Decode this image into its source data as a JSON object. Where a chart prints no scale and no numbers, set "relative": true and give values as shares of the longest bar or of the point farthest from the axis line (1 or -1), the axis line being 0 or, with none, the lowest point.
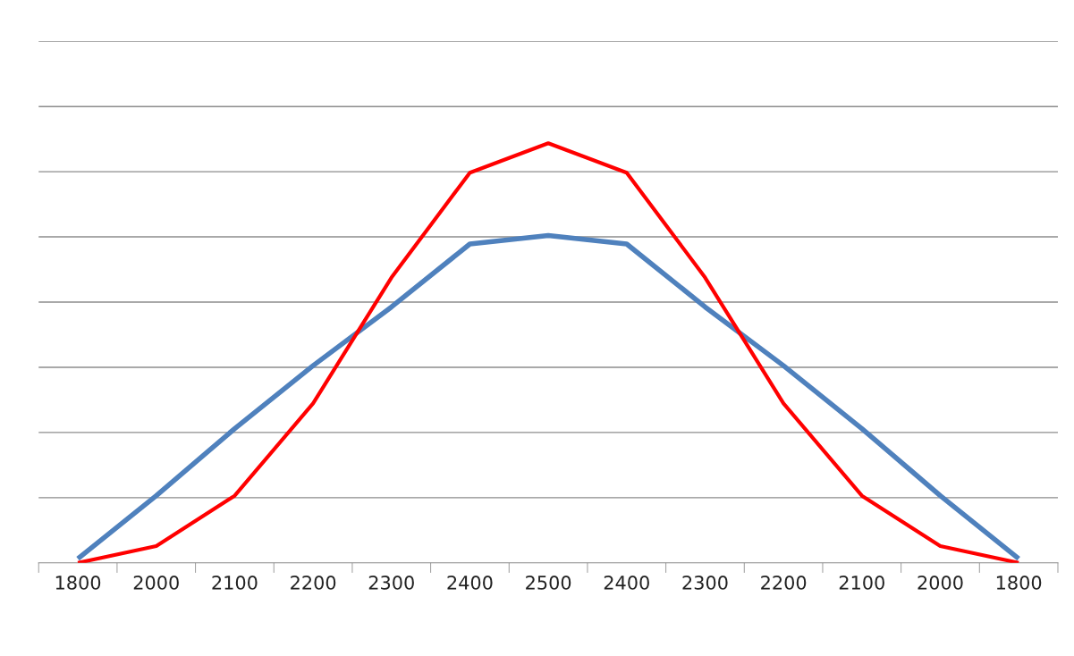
{
  "chart_data": {
    "type": "line",
    "relative": true,
    "categories": [
      "1800",
      "2000",
      "2100",
      "2200",
      "2300",
      "2400",
      "2500",
      "2400",
      "2300",
      "2200",
      "2100",
      "2000",
      "1800"
    ],
    "series": [
      {
        "color": "#4f81bd",
        "values": [
          0.01,
          0.16,
          0.32,
          0.47,
          0.61,
          0.76,
          0.78,
          0.76,
          0.61,
          0.47,
          0.32,
          0.16,
          0.01
        ]
      },
      {
        "color": "#ff0000",
        "values": [
          0,
          0.04,
          0.16,
          0.38,
          0.68,
          0.93,
          1.0,
          0.93,
          0.68,
          0.38,
          0.16,
          0.04,
          0
        ]
      }
    ],
    "grid": "y",
    "legend": false,
    "marker": "none",
    "line_style": "solid"
  }
}
